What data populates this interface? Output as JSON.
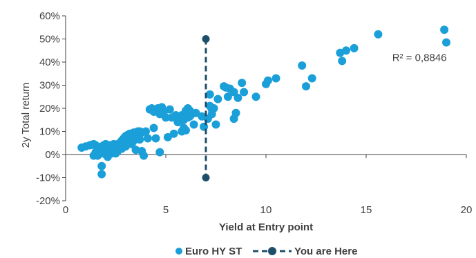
{
  "chart_data": {
    "type": "scatter",
    "xlabel": "Yield at Entry point",
    "ylabel": "2y Total return",
    "xlim": [
      0,
      20
    ],
    "ylim": [
      -20,
      60
    ],
    "x_ticks": [
      0,
      5,
      10,
      15,
      20
    ],
    "y_ticks": [
      -20,
      -10,
      0,
      10,
      20,
      30,
      40,
      50,
      60
    ],
    "x_tick_labels": [
      "0",
      "5",
      "10",
      "15",
      "20"
    ],
    "y_tick_labels": [
      "-20%",
      "-10%",
      "0%",
      "10%",
      "20%",
      "30%",
      "40%",
      "50%",
      "60%"
    ],
    "grid": false,
    "legend_position": "bottom",
    "annotation": {
      "text": "R² = 0,8846",
      "x": 16.3,
      "y": 40.5
    },
    "series": [
      {
        "name": "Euro HY ST",
        "kind": "scatter",
        "color": "#1b9fd9",
        "points": [
          [
            0.8,
            3
          ],
          [
            1.0,
            3.5
          ],
          [
            1.2,
            4
          ],
          [
            1.3,
            4.2
          ],
          [
            1.4,
            4.5
          ],
          [
            1.5,
            4
          ],
          [
            1.5,
            1
          ],
          [
            1.4,
            -0.5
          ],
          [
            1.6,
            -0.5
          ],
          [
            1.7,
            0.3
          ],
          [
            1.8,
            1.5
          ],
          [
            1.8,
            3.5
          ],
          [
            1.8,
            -5
          ],
          [
            1.8,
            -8.5
          ],
          [
            1.9,
            4
          ],
          [
            1.9,
            2.5
          ],
          [
            2.0,
            4.5
          ],
          [
            2.0,
            0
          ],
          [
            2.0,
            2
          ],
          [
            2.1,
            3.5
          ],
          [
            2.1,
            -1
          ],
          [
            2.2,
            4
          ],
          [
            2.2,
            1.5
          ],
          [
            2.3,
            3
          ],
          [
            2.3,
            0.5
          ],
          [
            2.4,
            4.5
          ],
          [
            2.4,
            2
          ],
          [
            2.5,
            3
          ],
          [
            2.5,
            0.5
          ],
          [
            2.6,
            1.5
          ],
          [
            2.6,
            4.5
          ],
          [
            2.7,
            5
          ],
          [
            2.7,
            3
          ],
          [
            2.8,
            6
          ],
          [
            2.8,
            2.5
          ],
          [
            2.9,
            7
          ],
          [
            2.9,
            4
          ],
          [
            3.0,
            8
          ],
          [
            3.0,
            3.5
          ],
          [
            3.1,
            8.5
          ],
          [
            3.1,
            6
          ],
          [
            3.2,
            9
          ],
          [
            3.2,
            5.5
          ],
          [
            3.3,
            7.5
          ],
          [
            3.3,
            4.5
          ],
          [
            3.4,
            9.5
          ],
          [
            3.4,
            6
          ],
          [
            3.5,
            8
          ],
          [
            3.5,
            2
          ],
          [
            3.6,
            10
          ],
          [
            3.7,
            10
          ],
          [
            3.7,
            6.5
          ],
          [
            3.8,
            1.5
          ],
          [
            3.8,
            9.5
          ],
          [
            3.9,
            -0.5
          ],
          [
            4.0,
            10
          ],
          [
            4.1,
            7
          ],
          [
            4.2,
            19.5
          ],
          [
            4.3,
            20
          ],
          [
            4.4,
            18.5
          ],
          [
            4.4,
            11.5
          ],
          [
            4.5,
            7
          ],
          [
            4.6,
            20
          ],
          [
            4.6,
            19
          ],
          [
            4.7,
            1
          ],
          [
            4.7,
            17.5
          ],
          [
            4.8,
            20.5
          ],
          [
            4.9,
            18.5
          ],
          [
            5.0,
            16
          ],
          [
            5.1,
            7.5
          ],
          [
            5.2,
            19.5
          ],
          [
            5.3,
            16
          ],
          [
            5.4,
            9
          ],
          [
            5.5,
            17
          ],
          [
            5.6,
            14
          ],
          [
            5.7,
            14.5
          ],
          [
            5.8,
            17
          ],
          [
            5.8,
            10
          ],
          [
            5.9,
            15
          ],
          [
            5.9,
            11.5
          ],
          [
            6.0,
            19
          ],
          [
            6.0,
            10.5
          ],
          [
            6.1,
            20
          ],
          [
            6.1,
            16
          ],
          [
            6.2,
            16.5
          ],
          [
            6.2,
            19
          ],
          [
            6.3,
            17.5
          ],
          [
            6.4,
            13
          ],
          [
            6.5,
            18
          ],
          [
            6.8,
            16.5
          ],
          [
            6.9,
            12
          ],
          [
            7.1,
            15.5
          ],
          [
            7.2,
            21
          ],
          [
            7.2,
            26
          ],
          [
            7.3,
            19.5
          ],
          [
            7.3,
            17.5
          ],
          [
            7.4,
            20
          ],
          [
            7.5,
            13
          ],
          [
            7.6,
            24
          ],
          [
            7.9,
            29.5
          ],
          [
            8.0,
            29
          ],
          [
            8.1,
            25
          ],
          [
            8.2,
            28.5
          ],
          [
            8.4,
            27
          ],
          [
            8.4,
            15.5
          ],
          [
            8.5,
            18
          ],
          [
            8.6,
            24.5
          ],
          [
            8.8,
            31
          ],
          [
            8.9,
            27
          ],
          [
            9.5,
            25
          ],
          [
            10.0,
            30.5
          ],
          [
            10.1,
            32
          ],
          [
            10.5,
            33
          ],
          [
            11.8,
            38.5
          ],
          [
            12.0,
            29.5
          ],
          [
            12.3,
            33
          ],
          [
            13.7,
            44
          ],
          [
            13.8,
            40.5
          ],
          [
            14.0,
            45
          ],
          [
            14.4,
            46
          ],
          [
            15.6,
            52
          ],
          [
            18.9,
            54
          ],
          [
            19.0,
            48.5
          ]
        ]
      },
      {
        "name": "You are Here",
        "kind": "line",
        "color": "#1f4e6b",
        "points": [
          [
            7.0,
            50
          ],
          [
            7.0,
            -10
          ]
        ]
      }
    ]
  }
}
